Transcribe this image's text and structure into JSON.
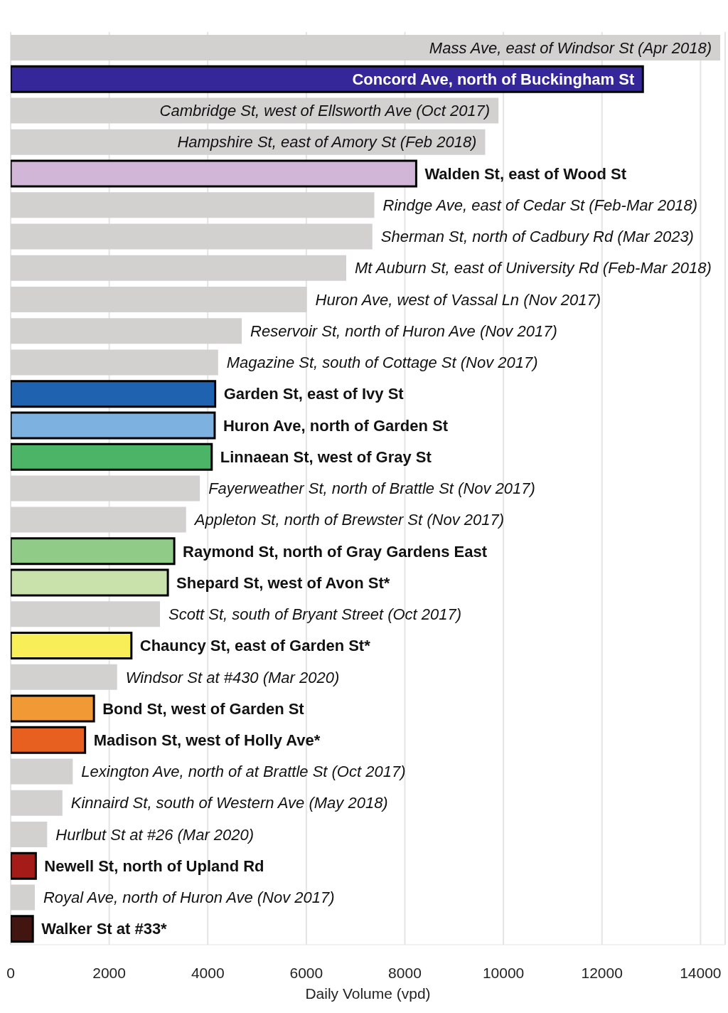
{
  "chart_data": {
    "type": "bar",
    "orientation": "horizontal",
    "xlabel": "Daily Volume (vpd)",
    "categories": [
      "Mass Ave, east of Windsor St (Apr 2018)",
      "Concord Ave, north of Buckingham St",
      "Cambridge St, west of Ellsworth Ave (Oct 2017)",
      "Hampshire St, east of Amory St (Feb 2018)",
      "Walden St, east of Wood St",
      "Rindge Ave, east of Cedar St (Feb-Mar 2018)",
      "Sherman St, north of Cadbury Rd (Mar 2023)",
      "Mt Auburn St, east of University Rd (Feb-Mar 2018)",
      "Huron Ave, west of Vassal Ln (Nov 2017)",
      "Reservoir St, north of Huron Ave (Nov 2017)",
      "Magazine St, south of Cottage St (Nov 2017)",
      "Garden St, east of Ivy St",
      "Huron Ave, north of Garden St",
      "Linnaean St, west of Gray St",
      "Fayerweather St, north of Brattle St (Nov 2017)",
      "Appleton St, north of Brewster St (Nov 2017)",
      "Raymond St, north of Gray Gardens East",
      "Shepard St, west of Avon St*",
      "Scott St, south of Bryant Street (Oct 2017)",
      "Chauncy St, east of Garden St*",
      "Windsor St at #430 (Mar 2020)",
      "Bond St, west of Garden St",
      "Madison St, west of Holly Ave*",
      "Lexington Ave, north of at Brattle St (Oct 2017)",
      "Kinnaird St, south of Western Ave (May 2018)",
      "Hurlbut St at #26 (Mar 2020)",
      "Newell St, north of Upland Rd",
      "Royal Ave, north of Huron Ave (Nov 2017)",
      "Walker St at #33*"
    ],
    "values": [
      14400,
      12830,
      9900,
      9630,
      8230,
      7380,
      7340,
      6810,
      6010,
      4690,
      4210,
      4150,
      4140,
      4080,
      3840,
      3560,
      3320,
      3190,
      3030,
      2450,
      2160,
      1690,
      1510,
      1260,
      1050,
      740,
      510,
      490,
      450
    ],
    "colors": [
      "#d3d0d0",
      "#35279a",
      "#d3d0d0",
      "#d3d0d0",
      "#d2b6d8",
      "#d3d0d0",
      "#d3d0d0",
      "#d3d0d0",
      "#d3d0d0",
      "#d3d0d0",
      "#d3d0d0",
      "#1f63b0",
      "#7db1df",
      "#4bb466",
      "#d3d0d0",
      "#d3d0d0",
      "#90cb88",
      "#c9e1ab",
      "#d3d0d0",
      "#f8ee57",
      "#d3d0d0",
      "#f19a35",
      "#e7601f",
      "#d3d0d0",
      "#d3d0d0",
      "#d3d0d0",
      "#a51b17",
      "#d3d0d0",
      "#431510"
    ],
    "xlim": [
      0,
      14500
    ],
    "xticks": [
      0,
      2000,
      4000,
      6000,
      8000,
      10000,
      12000,
      14000
    ],
    "grid": "x",
    "tick_labels": "x"
  }
}
